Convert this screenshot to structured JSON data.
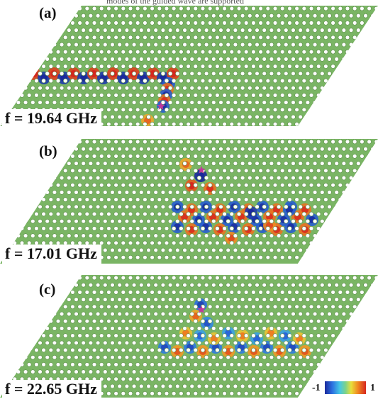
{
  "caption_fragment": "modes of the guided wave are supported",
  "colors": {
    "background": "#7ab564",
    "hole": "#ffffff",
    "hole_ring": "#5a8c48",
    "negative": "#1b2a9c",
    "positive": "#d6271e",
    "source_marker": "#c0399b"
  },
  "panels": [
    {
      "letter": "(a)",
      "frequency": "f = 19.64 GHz"
    },
    {
      "letter": "(b)",
      "frequency": "f = 17.01 GHz"
    },
    {
      "letter": "(c)",
      "frequency": "f = 22.65 GHz"
    }
  ],
  "colorbar": {
    "min_label": "-1",
    "max_label": "1"
  }
}
